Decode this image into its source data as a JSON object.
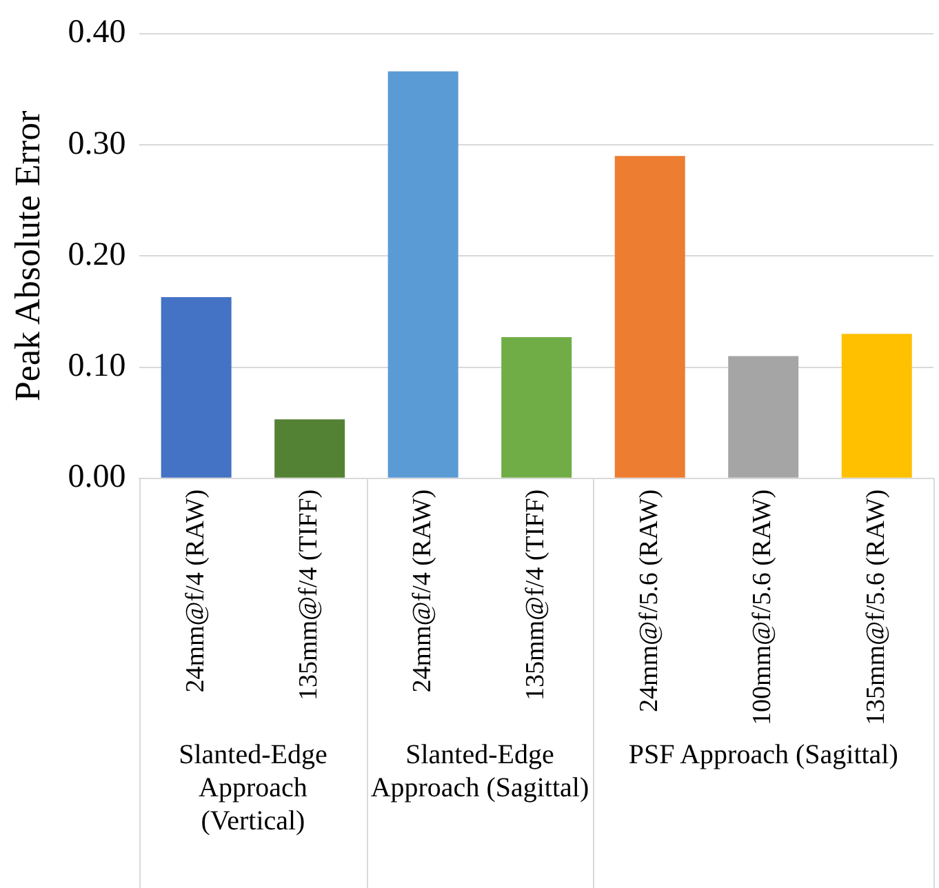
{
  "chart_data": {
    "type": "bar",
    "ylabel": "Peak Absolute Error",
    "categories": [
      "24mm@f/4 (RAW)",
      "135mm@f/4 (TIFF)",
      "24mm@f/4 (RAW)",
      "135mm@f/4 (TIFF)",
      "24mm@f/5.6 (RAW)",
      "100mm@f/5.6 (RAW)",
      "135mm@f/5.6 (RAW)"
    ],
    "values": [
      0.163,
      0.053,
      0.366,
      0.127,
      0.29,
      0.11,
      0.13
    ],
    "colors": [
      "#4472c4",
      "#548235",
      "#5b9bd5",
      "#70ad47",
      "#ed7d31",
      "#a5a5a5",
      "#ffc000"
    ],
    "ylim": [
      0,
      0.4
    ],
    "yticks": [
      {
        "value": 0,
        "label": "0.00"
      },
      {
        "value": 0.1,
        "label": "0.10"
      },
      {
        "value": 0.2,
        "label": "0.20"
      },
      {
        "value": 0.3,
        "label": "0.30"
      },
      {
        "value": 0.4,
        "label": "0.40"
      }
    ],
    "grid": "y",
    "annotations": [
      "Slanted-Edge Approach (Vertical)",
      "Slanted-Edge Approach (Sagittal)",
      "PSF Approach (Sagittal)"
    ]
  }
}
